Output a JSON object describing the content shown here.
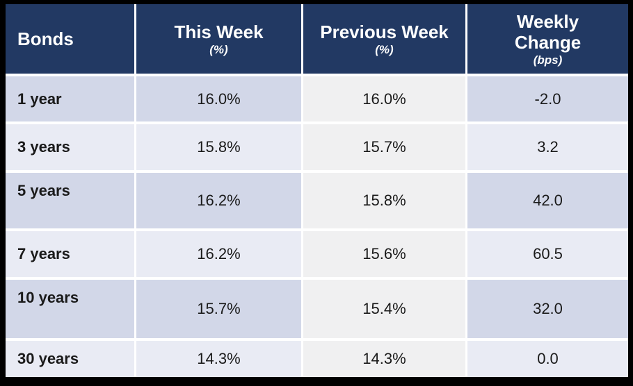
{
  "colors": {
    "frame": "#000000",
    "header_bg": "#223963",
    "header_text": "#FFFFFF",
    "row_odd_bg": "#D2D7E8",
    "row_even_bg": "#E9EBF4",
    "previous_week_col_bg": "#F0F0F1",
    "gap_lines": "#FFFFFF",
    "body_text": "#1A1A1A"
  },
  "header": {
    "columns": [
      {
        "label": "Bonds",
        "sub": ""
      },
      {
        "label": "This Week",
        "sub": "(%)"
      },
      {
        "label": "Previous Week",
        "sub": "(%)"
      },
      {
        "label": "Weekly\nChange",
        "sub": "(bps)"
      }
    ]
  },
  "rows": [
    {
      "bond": "1 year",
      "this_week": "16.0%",
      "previous_week": "16.0%",
      "weekly_change": "-2.0"
    },
    {
      "bond": "3 years",
      "this_week": "15.8%",
      "previous_week": "15.7%",
      "weekly_change": "3.2"
    },
    {
      "bond": "5 years",
      "this_week": "16.2%",
      "previous_week": "15.8%",
      "weekly_change": "42.0"
    },
    {
      "bond": "7 years",
      "this_week": "16.2%",
      "previous_week": "15.6%",
      "weekly_change": "60.5"
    },
    {
      "bond": "10 years",
      "this_week": "15.7%",
      "previous_week": "15.4%",
      "weekly_change": "32.0"
    },
    {
      "bond": "30 years",
      "this_week": "14.3%",
      "previous_week": "14.3%",
      "weekly_change": "0.0"
    }
  ],
  "chart_data": {
    "type": "table",
    "columns": [
      "Bonds",
      "This Week (%)",
      "Previous Week (%)",
      "Weekly Change (bps)"
    ],
    "rows": [
      [
        "1 year",
        16.0,
        16.0,
        -2.0
      ],
      [
        "3 years",
        15.8,
        15.7,
        3.2
      ],
      [
        "5 years",
        16.2,
        15.8,
        42.0
      ],
      [
        "7 years",
        16.2,
        15.6,
        60.5
      ],
      [
        "10 years",
        15.7,
        15.4,
        32.0
      ],
      [
        "30 years",
        14.3,
        14.3,
        0.0
      ]
    ]
  }
}
